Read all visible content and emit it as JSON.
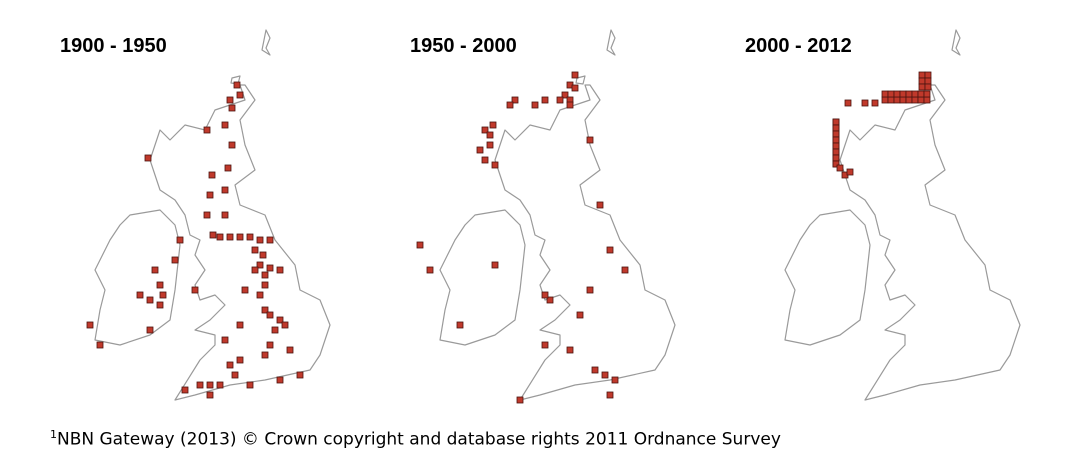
{
  "maps": [
    {
      "title": "1900 - 1950"
    },
    {
      "title": "1950 - 2000"
    },
    {
      "title": "2000 - 2012"
    }
  ],
  "footnote": {
    "marker": "1",
    "text": "NBN Gateway (2013) © Crown copyright and database rights 2011 Ordnance Survey"
  }
}
